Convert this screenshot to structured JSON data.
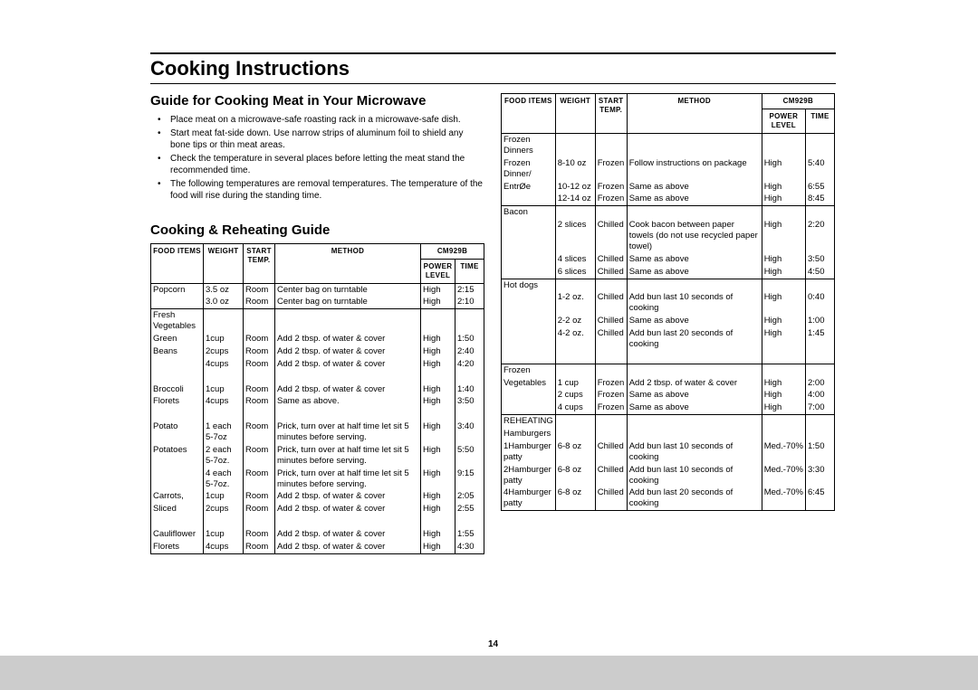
{
  "title": "Cooking Instructions",
  "guide": {
    "heading": "Guide for Cooking Meat in Your Microwave",
    "bullets": [
      "Place meat on a microwave-safe roasting rack in a microwave-safe dish.",
      "Start meat fat-side down. Use narrow strips of aluminum foil to shield any bone tips or thin meat areas.",
      "Check the temperature in several places before letting the meat stand the recommended time.",
      "The following temperatures are removal temperatures. The temperature of the food will rise during the standing time."
    ]
  },
  "reheat_heading": "Cooking & Reheating Guide",
  "headers": {
    "food": "FOOD ITEMS",
    "weight": "WEIGHT",
    "temp": "START TEMP.",
    "method": "METHOD",
    "model": "CM929B",
    "power": "POWER LEVEL",
    "time": "TIME"
  },
  "left_rows": [
    {
      "section": true,
      "food": "Popcorn",
      "weight": "3.5 oz",
      "temp": "Room",
      "method": "Center bag on turntable",
      "power": "High",
      "time": "2:15"
    },
    {
      "food": "",
      "weight": "3.0 oz",
      "temp": "Room",
      "method": "Center bag on turntable",
      "power": "High",
      "time": "2:10"
    },
    {
      "section": true,
      "food": "Fresh Vegetables",
      "weight": "",
      "temp": "",
      "method": "",
      "power": "",
      "time": ""
    },
    {
      "food": "Green",
      "weight": "1cup",
      "temp": "Room",
      "method": "Add 2 tbsp. of water & cover",
      "power": "High",
      "time": "1:50"
    },
    {
      "food": "Beans",
      "weight": "2cups",
      "temp": "Room",
      "method": "Add 2 tbsp. of water & cover",
      "power": "High",
      "time": "2:40"
    },
    {
      "food": "",
      "weight": "4cups",
      "temp": "Room",
      "method": "Add 2 tbsp. of water & cover",
      "power": "High",
      "time": "4:20"
    },
    {
      "spacer": true
    },
    {
      "food": "Broccoli",
      "weight": "1cup",
      "temp": "Room",
      "method": "Add 2 tbsp. of water & cover",
      "power": "High",
      "time": "1:40"
    },
    {
      "food": "Florets",
      "weight": "4cups",
      "temp": "Room",
      "method": "Same as above.",
      "power": "High",
      "time": "3:50"
    },
    {
      "spacer": true
    },
    {
      "food": "Potato",
      "weight": "1 each 5-7oz",
      "temp": "Room",
      "method": "Prick, turn over at half time let sit 5 minutes before serving.",
      "power": "High",
      "time": "3:40"
    },
    {
      "food": "Potatoes",
      "weight": "2 each 5-7oz.",
      "temp": "Room",
      "method": "Prick, turn over at half time let sit 5 minutes before serving.",
      "power": "High",
      "time": "5:50"
    },
    {
      "food": "",
      "weight": "4 each 5-7oz.",
      "temp": "Room",
      "method": "Prick, turn over at half time let sit 5 minutes before serving.",
      "power": "High",
      "time": "9:15"
    },
    {
      "food": "Carrots,",
      "weight": "1cup",
      "temp": "Room",
      "method": "Add 2 tbsp. of water & cover",
      "power": "High",
      "time": "2:05"
    },
    {
      "food": "Sliced",
      "weight": "2cups",
      "temp": "Room",
      "method": "Add 2 tbsp. of water & cover",
      "power": "High",
      "time": "2:55"
    },
    {
      "spacer": true
    },
    {
      "food": "Cauliflower",
      "weight": "1cup",
      "temp": "Room",
      "method": " Add 2 tbsp. of water & cover",
      "power": "High",
      "time": "1:55"
    },
    {
      "food": "Florets",
      "weight": "4cups",
      "temp": "Room",
      "method": " Add 2 tbsp. of water & cover",
      "power": "High",
      "time": "4:30"
    }
  ],
  "right_rows": [
    {
      "section": true,
      "food": "Frozen Dinners",
      "weight": "",
      "temp": "",
      "method": "",
      "power": "",
      "time": ""
    },
    {
      "food": "Frozen Dinner/",
      "weight": "8-10 oz",
      "temp": "Frozen",
      "method": "Follow instructions on package",
      "power": "High",
      "time": "5:40"
    },
    {
      "food": "EntrØe",
      "weight": "10-12 oz",
      "temp": "Frozen",
      "method": "Same as above",
      "power": "High",
      "time": "6:55"
    },
    {
      "food": "",
      "weight": "12-14 oz",
      "temp": "Frozen",
      "method": "Same as above",
      "power": "High",
      "time": "8:45"
    },
    {
      "section": true,
      "food": "Bacon",
      "weight": "",
      "temp": "",
      "method": "",
      "power": "",
      "time": ""
    },
    {
      "food": "",
      "weight": "2 slices",
      "temp": "Chilled",
      "method": "Cook bacon between paper towels (do not use recycled paper towel)",
      "power": "High",
      "time": "2:20"
    },
    {
      "food": "",
      "weight": "4 slices",
      "temp": "Chilled",
      "method": "Same as above",
      "power": "High",
      "time": "3:50"
    },
    {
      "food": "",
      "weight": "6 slices",
      "temp": "Chilled",
      "method": "Same as above",
      "power": "High",
      "time": "4:50"
    },
    {
      "section": true,
      "food": "Hot dogs",
      "weight": "",
      "temp": "",
      "method": "",
      "power": "",
      "time": ""
    },
    {
      "food": "",
      "weight": "1-2 oz.",
      "temp": "Chilled",
      "method": "Add bun last 10 seconds of cooking",
      "power": "High",
      "time": "0:40"
    },
    {
      "food": "",
      "weight": "2-2 oz",
      "temp": "Chilled",
      "method": "Same as above",
      "power": "High",
      "time": "1:00"
    },
    {
      "food": "",
      "weight": "4-2 oz.",
      "temp": "Chilled",
      "method": "Add bun last 20 seconds of cooking",
      "power": "High",
      "time": "1:45"
    },
    {
      "spacer": true
    },
    {
      "section": true,
      "food": "Frozen",
      "weight": "",
      "temp": "",
      "method": "",
      "power": "",
      "time": ""
    },
    {
      "food": "Vegetables",
      "weight": "1 cup",
      "temp": "Frozen",
      "method": "Add 2 tbsp. of water & cover",
      "power": "High",
      "time": "2:00"
    },
    {
      "food": "",
      "weight": "2 cups",
      "temp": "Frozen",
      "method": "Same as above",
      "power": "High",
      "time": "4:00"
    },
    {
      "food": "",
      "weight": "4 cups",
      "temp": "Frozen",
      "method": "Same as above",
      "power": "High",
      "time": "7:00"
    },
    {
      "section": true,
      "food": "REHEATING",
      "weight": "",
      "temp": "",
      "method": "",
      "power": "",
      "time": ""
    },
    {
      "food": "Hamburgers",
      "weight": "",
      "temp": "",
      "method": "",
      "power": "",
      "time": ""
    },
    {
      "food": "1Hamburger patty",
      "weight": "6-8 oz",
      "temp": "Chilled",
      "method": "Add bun last 10 seconds of cooking",
      "power": "Med.-70%",
      "time": "1:50"
    },
    {
      "food": "2Hamburger patty",
      "weight": "6-8 oz",
      "temp": "Chilled",
      "method": "Add bun last 10 seconds of cooking",
      "power": "Med.-70%",
      "time": "3:30"
    },
    {
      "food": "4Hamburger patty",
      "weight": "6-8 oz",
      "temp": "Chilled",
      "method": "Add bun last 20 seconds of cooking",
      "power": "Med.-70%",
      "time": "6:45"
    }
  ],
  "page_number": "14"
}
